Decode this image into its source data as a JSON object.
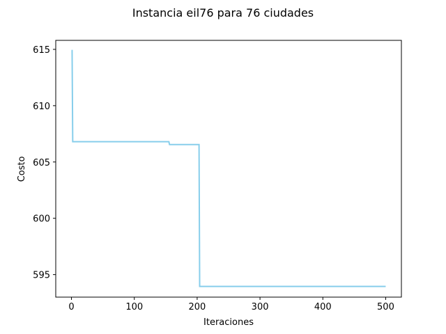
{
  "chart_data": {
    "type": "line",
    "title": "Instancia eil76 para 76 ciudades",
    "xlabel": "Iteraciones",
    "ylabel": "Costo",
    "xlim": [
      -25,
      525
    ],
    "ylim": [
      593,
      615.8
    ],
    "xticks": [
      0,
      100,
      200,
      300,
      400,
      500
    ],
    "yticks": [
      595,
      600,
      605,
      610,
      615
    ],
    "xtick_labels": [
      "0",
      "100",
      "200",
      "300",
      "400",
      "500"
    ],
    "ytick_labels": [
      "595",
      "600",
      "605",
      "610",
      "615"
    ],
    "grid": false,
    "legend": "none",
    "line_color": "#87ceeb",
    "series": [
      {
        "x": [
          0,
          1,
          2,
          3,
          4,
          155,
          156,
          203,
          204,
          500
        ],
        "y": [
          614.9,
          614.9,
          606.8,
          606.8,
          606.8,
          606.8,
          606.55,
          606.55,
          593.95,
          593.95
        ]
      }
    ]
  }
}
